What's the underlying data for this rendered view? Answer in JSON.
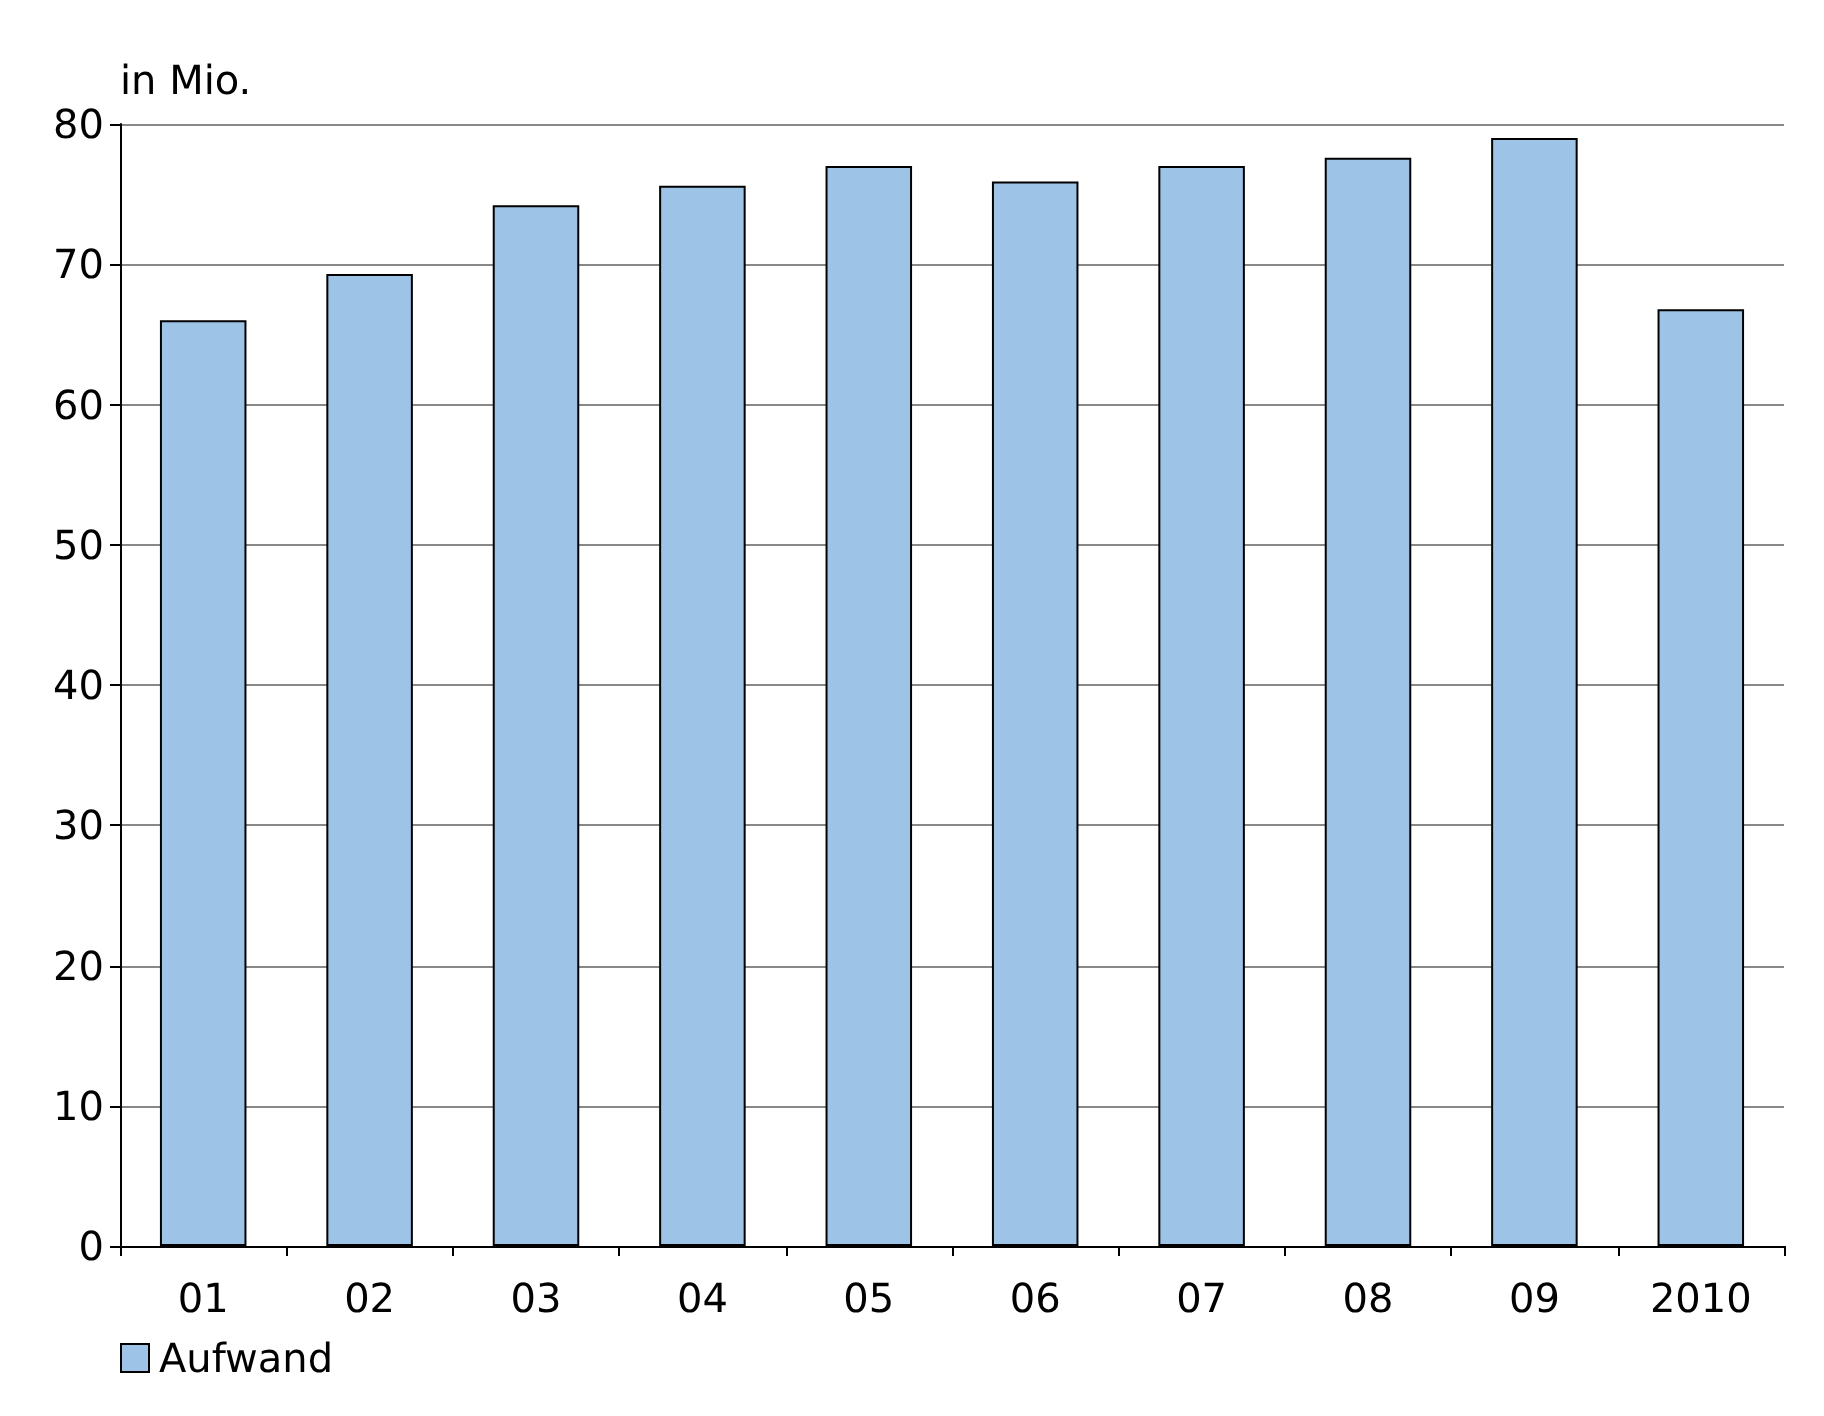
{
  "chart_data": {
    "type": "bar",
    "ylabel": "in Mio.",
    "categories": [
      "01",
      "02",
      "03",
      "04",
      "05",
      "06",
      "07",
      "08",
      "09",
      "2010"
    ],
    "series": [
      {
        "name": "Aufwand",
        "color": "#9dc3e6",
        "values": [
          66,
          69.3,
          74.2,
          75.6,
          77,
          75.9,
          77,
          77.6,
          79,
          66.8
        ]
      }
    ],
    "ylim": [
      0,
      80
    ],
    "yticks": [
      0,
      10,
      20,
      30,
      40,
      50,
      60,
      70,
      80
    ],
    "grid": "y",
    "legend": "bottom left"
  }
}
